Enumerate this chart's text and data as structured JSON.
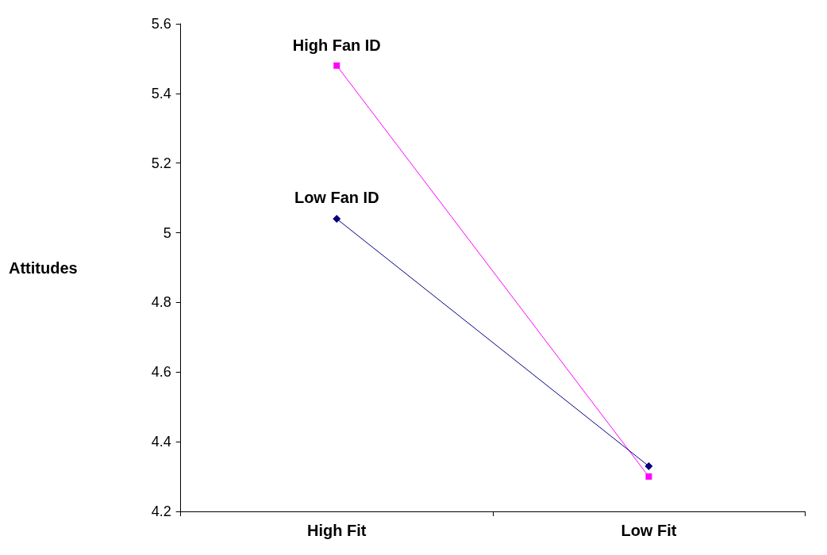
{
  "chart_data": {
    "type": "line",
    "ylabel": "Attitudes",
    "categories": [
      "High Fit",
      "Low Fit"
    ],
    "series": [
      {
        "name": "High Fan ID",
        "color": "#ff00ff",
        "marker": "square",
        "values": [
          5.48,
          4.3
        ]
      },
      {
        "name": "Low Fan ID",
        "color": "#000080",
        "marker": "diamond",
        "values": [
          5.04,
          4.33
        ]
      }
    ],
    "ylim": [
      4.2,
      5.6
    ],
    "yticks": [
      4.2,
      4.4,
      4.6,
      4.8,
      5,
      5.2,
      5.4,
      5.6
    ],
    "grid": false,
    "legend": false
  }
}
